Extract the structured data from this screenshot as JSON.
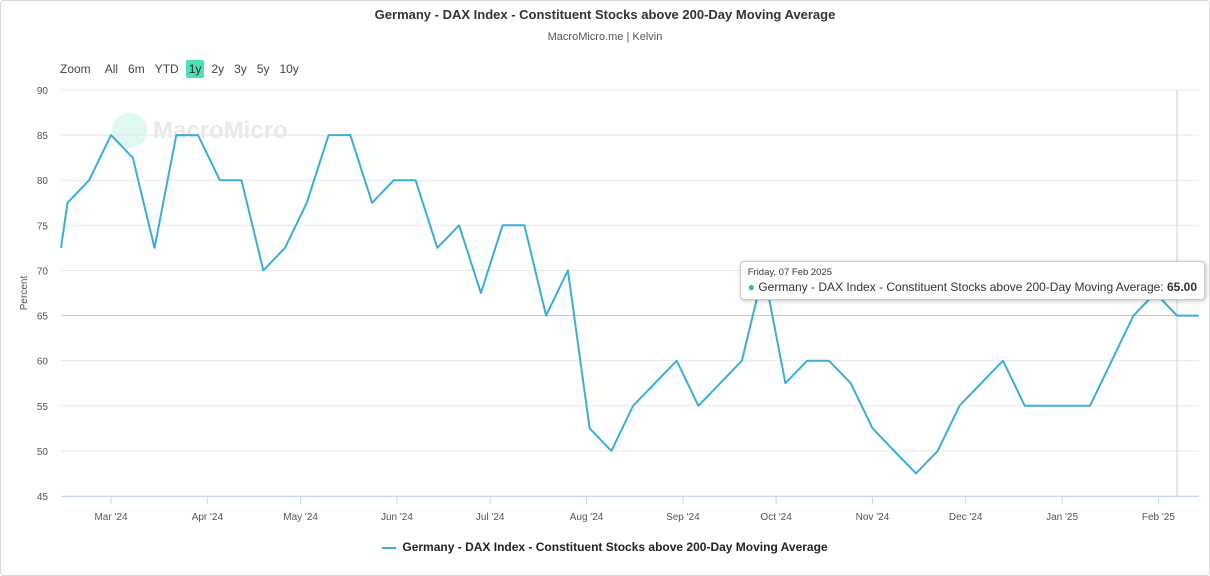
{
  "chart_data": {
    "type": "line",
    "title": "Germany - DAX Index - Constituent Stocks above 200-Day Moving Average",
    "subtitle": "MacroMicro.me | Kelvin",
    "ylabel": "Percent",
    "ylim": [
      45,
      90
    ],
    "yticks": [
      "90",
      "85",
      "80",
      "75",
      "70",
      "65",
      "60",
      "55",
      "50",
      "45"
    ],
    "xticks": [
      {
        "date": "2024-03-01",
        "label": "Mar '24"
      },
      {
        "date": "2024-04-01",
        "label": "Apr '24"
      },
      {
        "date": "2024-05-01",
        "label": "May '24"
      },
      {
        "date": "2024-06-01",
        "label": "Jun '24"
      },
      {
        "date": "2024-07-01",
        "label": "Jul '24"
      },
      {
        "date": "2024-08-01",
        "label": "Aug '24"
      },
      {
        "date": "2024-09-01",
        "label": "Sep '24"
      },
      {
        "date": "2024-10-01",
        "label": "Oct '24"
      },
      {
        "date": "2024-11-01",
        "label": "Nov '24"
      },
      {
        "date": "2024-12-01",
        "label": "Dec '24"
      },
      {
        "date": "2025-01-01",
        "label": "Jan '25"
      },
      {
        "date": "2025-02-01",
        "label": "Feb '25"
      }
    ],
    "grid": true,
    "legend_position": "bottom",
    "series": [
      {
        "name": "Germany - DAX Index - Constituent Stocks above 200-Day Moving Average",
        "color": "#3aaddb",
        "x": [
          "2024-02-16",
          "2024-02-23",
          "2024-03-01",
          "2024-03-08",
          "2024-03-15",
          "2024-03-22",
          "2024-03-29",
          "2024-04-05",
          "2024-04-12",
          "2024-04-19",
          "2024-04-26",
          "2024-05-03",
          "2024-05-10",
          "2024-05-17",
          "2024-05-24",
          "2024-05-31",
          "2024-06-07",
          "2024-06-14",
          "2024-06-21",
          "2024-06-28",
          "2024-07-05",
          "2024-07-12",
          "2024-07-19",
          "2024-07-26",
          "2024-08-02",
          "2024-08-09",
          "2024-08-16",
          "2024-08-23",
          "2024-08-30",
          "2024-09-06",
          "2024-09-13",
          "2024-09-20",
          "2024-09-27",
          "2024-10-04",
          "2024-10-11",
          "2024-10-18",
          "2024-10-25",
          "2024-11-01",
          "2024-11-08",
          "2024-11-15",
          "2024-11-22",
          "2024-11-29",
          "2024-12-06",
          "2024-12-13",
          "2024-12-20",
          "2024-12-27",
          "2025-01-03",
          "2025-01-10",
          "2025-01-17",
          "2025-01-24",
          "2025-01-31",
          "2025-02-07",
          "2025-02-14"
        ],
        "values": [
          77.5,
          80,
          85,
          82.5,
          72.5,
          85,
          85,
          80,
          80,
          70,
          72.5,
          77.5,
          85,
          85,
          77.5,
          80,
          80,
          72.5,
          75,
          67.5,
          75,
          75,
          65,
          70,
          52.5,
          50,
          55,
          57.5,
          60,
          55,
          57.5,
          60,
          70,
          57.5,
          60,
          60,
          57.5,
          52.5,
          50,
          47.5,
          50,
          55,
          57.5,
          60,
          55,
          55,
          55,
          55,
          60,
          65,
          67.5,
          65,
          65
        ]
      }
    ],
    "tooltip": {
      "date": "Friday, 07 Feb 2025",
      "series": "Germany - DAX Index - Constituent Stocks above 200-Day Moving Average",
      "value": "65.00",
      "x": "2025-02-07"
    }
  },
  "range_selector": {
    "label": "Zoom",
    "buttons": [
      "All",
      "6m",
      "YTD",
      "1y",
      "2y",
      "3y",
      "5y",
      "10y"
    ],
    "active": "1y"
  },
  "watermark": "MacroMicro",
  "accent_color": "#4ce0b9"
}
